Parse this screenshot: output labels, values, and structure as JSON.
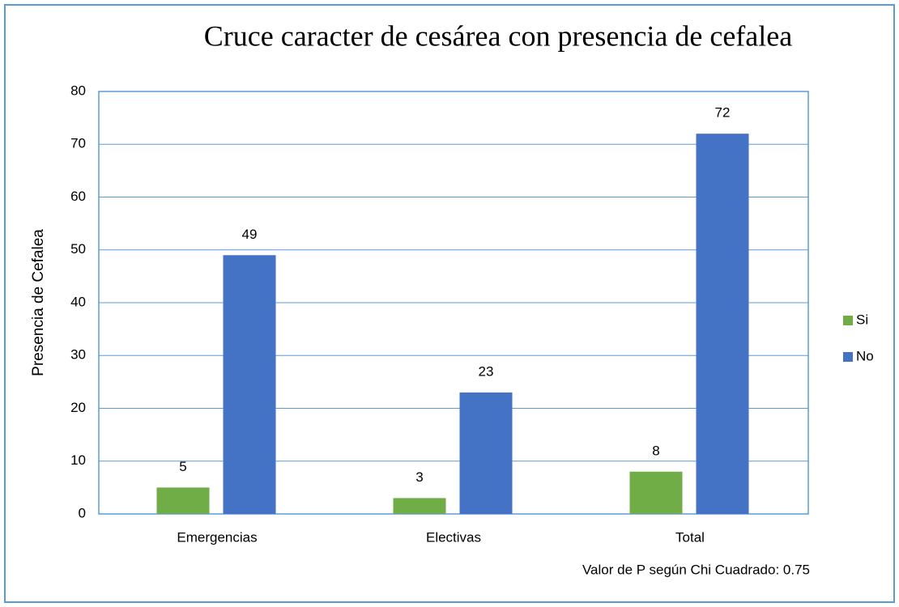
{
  "chart_data": {
    "type": "bar",
    "title": "Cruce caracter de cesárea con presencia de cefalea",
    "y_label": "Presencia de Cefalea",
    "annotation": "Valor de P según Chi Cuadrado: 0.75",
    "categories": [
      "Emergencias",
      "Electivas",
      "Total"
    ],
    "series": [
      {
        "name": "Si",
        "color": "#70ad47",
        "values": [
          5,
          3,
          8
        ]
      },
      {
        "name": "No",
        "color": "#4472c4",
        "values": [
          49,
          23,
          72
        ]
      }
    ],
    "ylim": [
      0,
      80
    ],
    "yticks": [
      0,
      10,
      20,
      30,
      40,
      50,
      60,
      70,
      80
    ],
    "grid": true,
    "legend": "right"
  }
}
